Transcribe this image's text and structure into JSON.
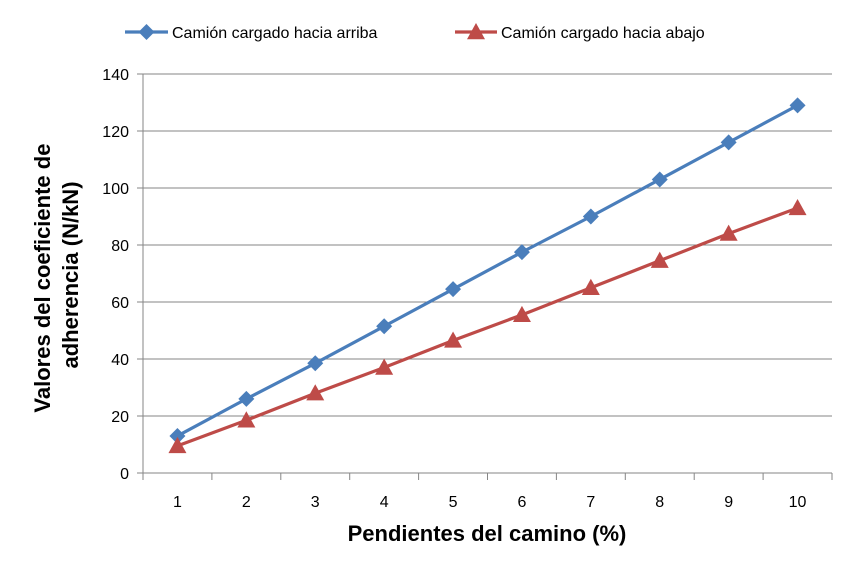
{
  "chart_data": {
    "type": "line",
    "title": "",
    "xlabel": "Pendientes del camino (%)",
    "ylabel_lines": [
      "Valores del coeficiente de",
      "adherencia (N/kN)"
    ],
    "x": [
      1,
      2,
      3,
      4,
      5,
      6,
      7,
      8,
      9,
      10
    ],
    "x_tick_labels": [
      "1",
      "2",
      "3",
      "4",
      "5",
      "6",
      "7",
      "8",
      "9",
      "10"
    ],
    "ylim": [
      0,
      140
    ],
    "y_ticks": [
      0,
      20,
      40,
      60,
      80,
      100,
      120,
      140
    ],
    "y_tick_labels": [
      "0",
      "20",
      "40",
      "60",
      "80",
      "100",
      "120",
      "140"
    ],
    "grid": "horizontal",
    "legend_position": "top",
    "series": [
      {
        "name": "Camión cargado hacia arriba",
        "marker": "diamond",
        "color": "#4A7EBB",
        "values": [
          13,
          26,
          38.5,
          51.5,
          64.5,
          77.5,
          90,
          103,
          116,
          129
        ]
      },
      {
        "name": "Camión cargado hacia abajo",
        "marker": "triangle",
        "color": "#BE4B48",
        "values": [
          9.5,
          18.5,
          28,
          37,
          46.5,
          55.5,
          65,
          74.5,
          84,
          93
        ]
      }
    ]
  }
}
